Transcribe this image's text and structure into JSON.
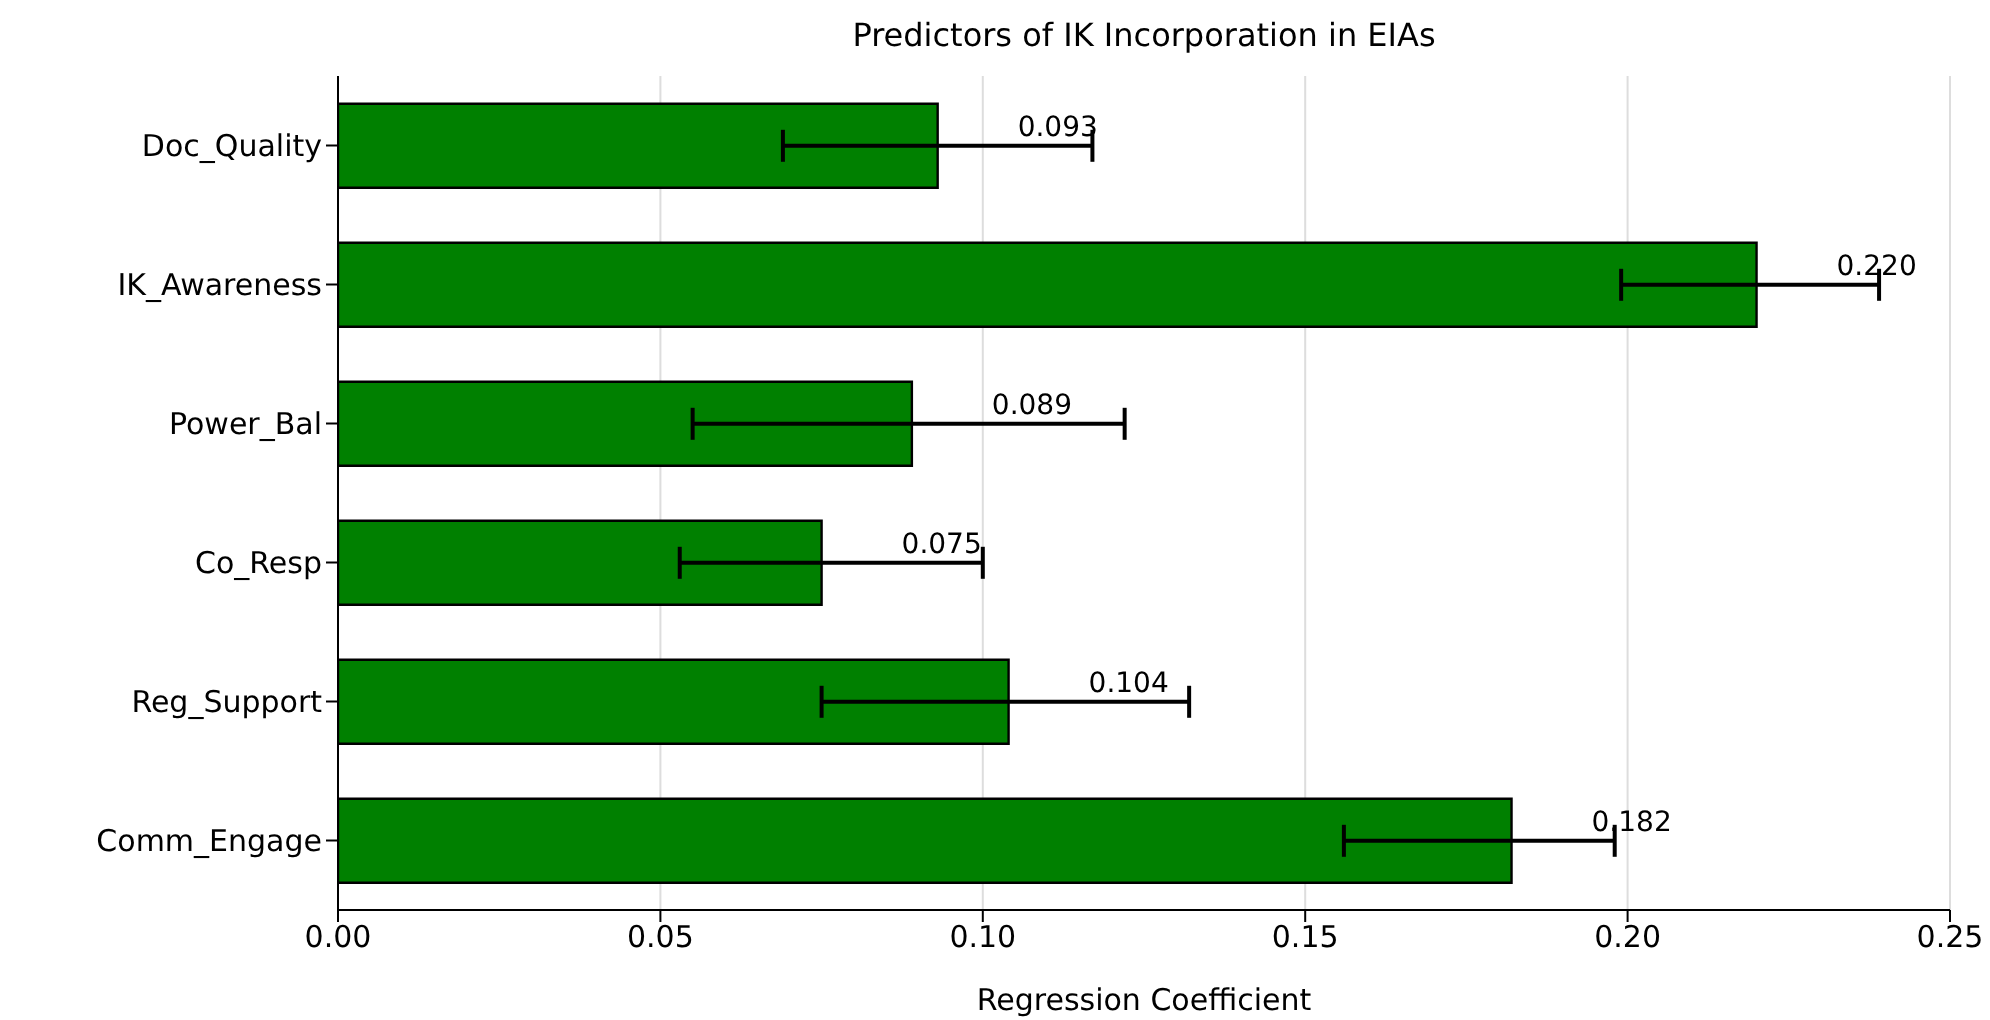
{
  "chart_data": {
    "type": "bar",
    "orientation": "horizontal",
    "title": "Predictors of IK Incorporation in EIAs",
    "xlabel": "Regression Coefficient",
    "categories": [
      "Doc_Quality",
      "IK_Awareness",
      "Power_Bal",
      "Co_Resp",
      "Reg_Support",
      "Comm_Engage"
    ],
    "values": [
      0.093,
      0.22,
      0.089,
      0.075,
      0.104,
      0.182
    ],
    "errors": [
      [
        0.069,
        0.117
      ],
      [
        0.199,
        0.239
      ],
      [
        0.055,
        0.122
      ],
      [
        0.053,
        0.1
      ],
      [
        0.075,
        0.132
      ],
      [
        0.156,
        0.198
      ]
    ],
    "value_labels": [
      "0.093",
      "0.220",
      "0.089",
      "0.075",
      "0.104",
      "0.182"
    ],
    "color": "#008000",
    "xlim": [
      0,
      0.25
    ],
    "xticks": [
      {
        "value": 0,
        "label": "0.00"
      },
      {
        "value": 0.05,
        "label": "0.05"
      },
      {
        "value": 0.1,
        "label": "0.10"
      },
      {
        "value": 0.15,
        "label": "0.15"
      },
      {
        "value": 0.2,
        "label": "0.20"
      },
      {
        "value": 0.25,
        "label": "0.25"
      }
    ],
    "grid": "x"
  }
}
